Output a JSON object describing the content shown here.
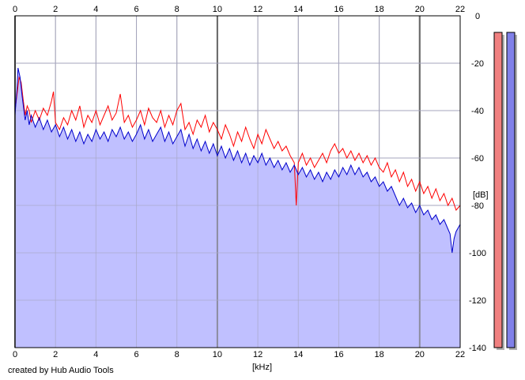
{
  "chart_data": {
    "type": "area",
    "title": "",
    "xlabel": "[kHz]",
    "ylabel": "[dB]",
    "xlim": [
      0,
      22
    ],
    "ylim": [
      -140,
      0
    ],
    "x_ticks": [
      0,
      2,
      4,
      6,
      8,
      10,
      12,
      14,
      16,
      18,
      20,
      22
    ],
    "y_ticks": [
      0,
      -20,
      -40,
      -60,
      -80,
      -100,
      -120,
      -140
    ],
    "grid": true,
    "legend": "none",
    "series": [
      {
        "color": "#ff0000",
        "points": [
          [
            0,
            -40
          ],
          [
            0.1,
            -33
          ],
          [
            0.2,
            -26
          ],
          [
            0.3,
            -28
          ],
          [
            0.4,
            -35
          ],
          [
            0.5,
            -42
          ],
          [
            0.6,
            -38
          ],
          [
            0.7,
            -40
          ],
          [
            0.8,
            -45
          ],
          [
            1.0,
            -40
          ],
          [
            1.2,
            -44
          ],
          [
            1.4,
            -39
          ],
          [
            1.6,
            -42
          ],
          [
            1.8,
            -36
          ],
          [
            1.9,
            -32
          ],
          [
            2.0,
            -45
          ],
          [
            2.2,
            -48
          ],
          [
            2.4,
            -43
          ],
          [
            2.6,
            -46
          ],
          [
            2.8,
            -40
          ],
          [
            3.0,
            -44
          ],
          [
            3.2,
            -38
          ],
          [
            3.4,
            -47
          ],
          [
            3.6,
            -42
          ],
          [
            3.8,
            -45
          ],
          [
            4.0,
            -40
          ],
          [
            4.2,
            -46
          ],
          [
            4.4,
            -42
          ],
          [
            4.6,
            -38
          ],
          [
            4.8,
            -44
          ],
          [
            5.0,
            -41
          ],
          [
            5.2,
            -33
          ],
          [
            5.4,
            -45
          ],
          [
            5.6,
            -42
          ],
          [
            5.8,
            -47
          ],
          [
            6.0,
            -44
          ],
          [
            6.2,
            -40
          ],
          [
            6.4,
            -46
          ],
          [
            6.6,
            -39
          ],
          [
            6.8,
            -43
          ],
          [
            7.0,
            -45
          ],
          [
            7.2,
            -40
          ],
          [
            7.4,
            -47
          ],
          [
            7.6,
            -42
          ],
          [
            7.8,
            -46
          ],
          [
            8.0,
            -40
          ],
          [
            8.2,
            -37
          ],
          [
            8.4,
            -48
          ],
          [
            8.6,
            -45
          ],
          [
            8.8,
            -50
          ],
          [
            9.0,
            -44
          ],
          [
            9.2,
            -47
          ],
          [
            9.4,
            -42
          ],
          [
            9.6,
            -49
          ],
          [
            9.8,
            -45
          ],
          [
            10.0,
            -48
          ],
          [
            10.2,
            -52
          ],
          [
            10.4,
            -46
          ],
          [
            10.6,
            -50
          ],
          [
            10.8,
            -55
          ],
          [
            11.0,
            -49
          ],
          [
            11.2,
            -53
          ],
          [
            11.4,
            -47
          ],
          [
            11.6,
            -52
          ],
          [
            11.8,
            -56
          ],
          [
            12.0,
            -50
          ],
          [
            12.2,
            -54
          ],
          [
            12.4,
            -48
          ],
          [
            12.6,
            -52
          ],
          [
            12.8,
            -56
          ],
          [
            13.0,
            -53
          ],
          [
            13.2,
            -57
          ],
          [
            13.4,
            -55
          ],
          [
            13.6,
            -59
          ],
          [
            13.8,
            -62
          ],
          [
            13.9,
            -80
          ],
          [
            14.0,
            -62
          ],
          [
            14.2,
            -58
          ],
          [
            14.4,
            -63
          ],
          [
            14.6,
            -60
          ],
          [
            14.8,
            -64
          ],
          [
            15.0,
            -61
          ],
          [
            15.2,
            -58
          ],
          [
            15.4,
            -62
          ],
          [
            15.6,
            -57
          ],
          [
            15.8,
            -54
          ],
          [
            16.0,
            -58
          ],
          [
            16.2,
            -56
          ],
          [
            16.4,
            -60
          ],
          [
            16.6,
            -57
          ],
          [
            16.8,
            -61
          ],
          [
            17.0,
            -58
          ],
          [
            17.2,
            -62
          ],
          [
            17.4,
            -59
          ],
          [
            17.6,
            -63
          ],
          [
            17.8,
            -60
          ],
          [
            18.0,
            -64
          ],
          [
            18.2,
            -66
          ],
          [
            18.4,
            -62
          ],
          [
            18.6,
            -68
          ],
          [
            18.8,
            -65
          ],
          [
            19.0,
            -70
          ],
          [
            19.2,
            -66
          ],
          [
            19.4,
            -72
          ],
          [
            19.6,
            -69
          ],
          [
            19.8,
            -74
          ],
          [
            20.0,
            -70
          ],
          [
            20.2,
            -75
          ],
          [
            20.4,
            -72
          ],
          [
            20.6,
            -77
          ],
          [
            20.8,
            -73
          ],
          [
            21.0,
            -78
          ],
          [
            21.2,
            -75
          ],
          [
            21.4,
            -80
          ],
          [
            21.6,
            -77
          ],
          [
            21.8,
            -82
          ],
          [
            22.0,
            -80
          ]
        ]
      },
      {
        "color": "#0000cc",
        "points": [
          [
            0,
            -42
          ],
          [
            0.1,
            -30
          ],
          [
            0.15,
            -22
          ],
          [
            0.25,
            -26
          ],
          [
            0.35,
            -34
          ],
          [
            0.5,
            -44
          ],
          [
            0.6,
            -40
          ],
          [
            0.7,
            -46
          ],
          [
            0.8,
            -42
          ],
          [
            1.0,
            -47
          ],
          [
            1.2,
            -43
          ],
          [
            1.4,
            -48
          ],
          [
            1.6,
            -44
          ],
          [
            1.8,
            -49
          ],
          [
            2.0,
            -46
          ],
          [
            2.2,
            -51
          ],
          [
            2.4,
            -47
          ],
          [
            2.6,
            -52
          ],
          [
            2.8,
            -48
          ],
          [
            3.0,
            -53
          ],
          [
            3.2,
            -49
          ],
          [
            3.4,
            -54
          ],
          [
            3.6,
            -50
          ],
          [
            3.8,
            -53
          ],
          [
            4.0,
            -48
          ],
          [
            4.2,
            -52
          ],
          [
            4.4,
            -49
          ],
          [
            4.6,
            -53
          ],
          [
            4.8,
            -48
          ],
          [
            5.0,
            -51
          ],
          [
            5.2,
            -47
          ],
          [
            5.4,
            -52
          ],
          [
            5.6,
            -49
          ],
          [
            5.8,
            -53
          ],
          [
            6.0,
            -50
          ],
          [
            6.2,
            -46
          ],
          [
            6.4,
            -52
          ],
          [
            6.6,
            -48
          ],
          [
            6.8,
            -53
          ],
          [
            7.0,
            -50
          ],
          [
            7.2,
            -47
          ],
          [
            7.4,
            -53
          ],
          [
            7.6,
            -49
          ],
          [
            7.8,
            -54
          ],
          [
            8.0,
            -51
          ],
          [
            8.2,
            -48
          ],
          [
            8.4,
            -55
          ],
          [
            8.6,
            -50
          ],
          [
            8.8,
            -56
          ],
          [
            9.0,
            -52
          ],
          [
            9.2,
            -57
          ],
          [
            9.4,
            -53
          ],
          [
            9.6,
            -58
          ],
          [
            9.8,
            -54
          ],
          [
            10.0,
            -59
          ],
          [
            10.2,
            -55
          ],
          [
            10.4,
            -60
          ],
          [
            10.6,
            -56
          ],
          [
            10.8,
            -61
          ],
          [
            11.0,
            -57
          ],
          [
            11.2,
            -62
          ],
          [
            11.4,
            -58
          ],
          [
            11.6,
            -63
          ],
          [
            11.8,
            -59
          ],
          [
            12.0,
            -62
          ],
          [
            12.2,
            -58
          ],
          [
            12.4,
            -63
          ],
          [
            12.6,
            -60
          ],
          [
            12.8,
            -64
          ],
          [
            13.0,
            -61
          ],
          [
            13.2,
            -65
          ],
          [
            13.4,
            -62
          ],
          [
            13.6,
            -66
          ],
          [
            13.8,
            -63
          ],
          [
            14.0,
            -67
          ],
          [
            14.2,
            -64
          ],
          [
            14.4,
            -68
          ],
          [
            14.6,
            -65
          ],
          [
            14.8,
            -69
          ],
          [
            15.0,
            -66
          ],
          [
            15.2,
            -70
          ],
          [
            15.4,
            -66
          ],
          [
            15.6,
            -69
          ],
          [
            15.8,
            -65
          ],
          [
            16.0,
            -68
          ],
          [
            16.2,
            -64
          ],
          [
            16.4,
            -67
          ],
          [
            16.6,
            -63
          ],
          [
            16.8,
            -67
          ],
          [
            17.0,
            -64
          ],
          [
            17.2,
            -68
          ],
          [
            17.4,
            -66
          ],
          [
            17.6,
            -70
          ],
          [
            17.8,
            -68
          ],
          [
            18.0,
            -72
          ],
          [
            18.2,
            -70
          ],
          [
            18.4,
            -74
          ],
          [
            18.6,
            -72
          ],
          [
            18.8,
            -76
          ],
          [
            19.0,
            -80
          ],
          [
            19.2,
            -77
          ],
          [
            19.4,
            -81
          ],
          [
            19.6,
            -79
          ],
          [
            19.8,
            -83
          ],
          [
            20.0,
            -80
          ],
          [
            20.2,
            -84
          ],
          [
            20.4,
            -82
          ],
          [
            20.6,
            -86
          ],
          [
            20.8,
            -84
          ],
          [
            21.0,
            -88
          ],
          [
            21.2,
            -86
          ],
          [
            21.4,
            -90
          ],
          [
            21.5,
            -92
          ],
          [
            21.6,
            -100
          ],
          [
            21.7,
            -94
          ],
          [
            21.8,
            -91
          ],
          [
            22.0,
            -88
          ]
        ]
      }
    ],
    "meters": [
      {
        "channel": "left",
        "color": "#f08080",
        "level_db": -7
      },
      {
        "channel": "right",
        "color": "#8080e8",
        "level_db": -7
      }
    ]
  },
  "footer": {
    "credit": "created by Hub Audio Tools"
  }
}
